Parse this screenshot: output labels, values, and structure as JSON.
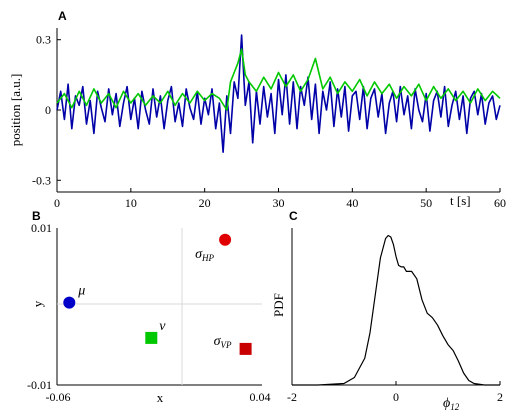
{
  "chart_data": [
    {
      "panel": "A",
      "type": "line",
      "xlabel": "t [s]",
      "ylabel": "position [a.u.]",
      "xlim": [
        0,
        60
      ],
      "ylim": [
        -0.35,
        0.35
      ],
      "xticks": [
        0,
        10,
        20,
        30,
        40,
        50,
        60
      ],
      "yticks": [
        0.3,
        0,
        -0.3
      ],
      "ytick_labels": [
        "0.3",
        "0",
        "-0.3"
      ],
      "series": [
        {
          "color": "#0000a8",
          "x": [
            0,
            0.5,
            1,
            1.5,
            2,
            2.5,
            3,
            3.5,
            4,
            4.5,
            5,
            5.5,
            6,
            6.5,
            7,
            7.5,
            8,
            8.5,
            9,
            9.5,
            10,
            10.5,
            11,
            11.5,
            12,
            12.5,
            13,
            13.5,
            14,
            14.5,
            15,
            15.5,
            16,
            16.5,
            17,
            17.5,
            18,
            18.5,
            19,
            19.5,
            20,
            20.5,
            21,
            21.5,
            22,
            22.5,
            23,
            23.5,
            24,
            24.5,
            25,
            25.5,
            26,
            26.5,
            27,
            27.5,
            28,
            28.5,
            29,
            29.5,
            30,
            30.5,
            31,
            31.5,
            32,
            32.5,
            33,
            33.5,
            34,
            34.5,
            35,
            35.5,
            36,
            36.5,
            37,
            37.5,
            38,
            38.5,
            39,
            39.5,
            40,
            40.5,
            41,
            41.5,
            42,
            42.5,
            43,
            43.5,
            44,
            44.5,
            45,
            45.5,
            46,
            46.5,
            47,
            47.5,
            48,
            48.5,
            49,
            49.5,
            50,
            50.5,
            51,
            51.5,
            52,
            52.5,
            53,
            53.5,
            54,
            54.5,
            55,
            55.5,
            56,
            56.5,
            57,
            57.5,
            58,
            58.5,
            59,
            59.5,
            60
          ],
          "y": [
            0.0,
            0.08,
            -0.04,
            0.11,
            -0.08,
            0.06,
            0.02,
            0.1,
            -0.06,
            0.04,
            -0.1,
            0.08,
            0.01,
            -0.05,
            0.09,
            -0.02,
            0.07,
            -0.07,
            0.03,
            0.1,
            -0.04,
            0.05,
            -0.08,
            0.08,
            0.0,
            -0.06,
            0.09,
            -0.03,
            0.06,
            -0.08,
            0.04,
            0.1,
            -0.05,
            0.03,
            -0.07,
            0.09,
            0.01,
            -0.04,
            0.08,
            -0.06,
            0.05,
            -0.02,
            0.09,
            -0.08,
            0.03,
            -0.18,
            0.06,
            -0.1,
            0.12,
            0.05,
            0.32,
            0.02,
            0.12,
            -0.14,
            0.08,
            -0.06,
            0.1,
            -0.03,
            0.07,
            -0.1,
            0.13,
            -0.02,
            0.15,
            -0.06,
            0.12,
            -0.08,
            0.1,
            0.02,
            0.14,
            -0.04,
            0.11,
            -0.1,
            0.08,
            0.0,
            0.12,
            -0.07,
            0.09,
            -0.03,
            0.1,
            -0.09,
            0.06,
            0.08,
            -0.04,
            0.1,
            -0.08,
            0.05,
            0.09,
            -0.03,
            0.07,
            -0.1,
            0.03,
            0.08,
            -0.05,
            0.1,
            -0.02,
            0.06,
            -0.08,
            0.09,
            0.0,
            -0.05,
            0.07,
            -0.09,
            0.04,
            0.08,
            -0.03,
            0.1,
            -0.07,
            0.02,
            0.08,
            -0.04,
            0.06,
            -0.1,
            0.05,
            0.08,
            -0.02,
            0.07,
            -0.06,
            0.03,
            0.06,
            -0.04,
            0.02
          ]
        },
        {
          "color": "#00c800",
          "x": [
            0,
            1,
            2,
            3,
            4,
            5,
            6,
            7,
            8,
            9,
            10,
            11,
            12,
            13,
            14,
            15,
            16,
            17,
            18,
            19,
            20,
            21,
            22,
            23,
            23.5,
            24,
            24.5,
            25,
            25.5,
            26,
            27,
            28,
            29,
            30,
            31,
            32,
            33,
            34,
            35,
            36,
            37,
            38,
            39,
            40,
            41,
            42,
            43,
            44,
            45,
            46,
            47,
            48,
            49,
            50,
            51,
            52,
            53,
            54,
            55,
            56,
            57,
            58,
            59,
            60
          ],
          "y": [
            0.03,
            0.07,
            0.01,
            0.08,
            0.02,
            0.09,
            0.03,
            0.07,
            0.01,
            0.08,
            0.03,
            0.07,
            0.02,
            0.06,
            0.03,
            0.08,
            0.02,
            0.07,
            0.03,
            0.08,
            0.04,
            0.07,
            0.05,
            0.0,
            0.12,
            0.16,
            0.2,
            0.26,
            0.15,
            0.12,
            0.08,
            0.14,
            0.09,
            0.16,
            0.1,
            0.15,
            0.08,
            0.13,
            0.22,
            0.09,
            0.14,
            0.07,
            0.12,
            0.08,
            0.13,
            0.06,
            0.12,
            0.07,
            0.11,
            0.05,
            0.1,
            0.06,
            0.11,
            0.04,
            0.1,
            0.05,
            0.09,
            0.04,
            0.08,
            0.03,
            0.09,
            0.04,
            0.08,
            0.05
          ]
        }
      ]
    },
    {
      "panel": "B",
      "type": "scatter",
      "xlabel": "x",
      "ylabel": "y",
      "xlim": [
        -0.06,
        0.04
      ],
      "ylim": [
        -0.01,
        0.01
      ],
      "xtick_labels": [
        "-0.06",
        "0.04"
      ],
      "ytick_labels": [
        "0.01",
        "-0.01"
      ],
      "points": [
        {
          "label": "μ",
          "sub": "",
          "x": -0.054,
          "y": 0.0005,
          "color": "#0000c8",
          "shape": "circle"
        },
        {
          "label": "σ",
          "sub": "HP",
          "x": 0.022,
          "y": 0.0085,
          "color": "#e00000",
          "shape": "circle"
        },
        {
          "label": "ν",
          "sub": "",
          "x": -0.014,
          "y": -0.004,
          "color": "#00c800",
          "shape": "square"
        },
        {
          "label": "σ",
          "sub": "VP",
          "x": 0.032,
          "y": -0.0054,
          "color": "#c80000",
          "shape": "square"
        }
      ]
    },
    {
      "panel": "C",
      "type": "line",
      "xlabel": "ϕ",
      "xlabel_sub": "12",
      "ylabel": "PDF",
      "xlim": [
        -2,
        2
      ],
      "ylim": [
        0,
        1.05
      ],
      "xtick_labels": [
        "-2",
        "0",
        "2"
      ],
      "series": [
        {
          "color": "#000000",
          "x": [
            -2,
            -1.5,
            -1,
            -0.8,
            -0.6,
            -0.5,
            -0.4,
            -0.3,
            -0.2,
            -0.15,
            -0.1,
            -0.05,
            0,
            0.05,
            0.1,
            0.15,
            0.2,
            0.3,
            0.4,
            0.5,
            0.6,
            0.7,
            0.8,
            0.9,
            1,
            1.1,
            1.2,
            1.3,
            1.4,
            1.5,
            1.7,
            2
          ],
          "y": [
            0,
            0,
            0.01,
            0.05,
            0.18,
            0.35,
            0.6,
            0.85,
            0.98,
            1.0,
            0.99,
            0.94,
            0.86,
            0.8,
            0.79,
            0.79,
            0.76,
            0.76,
            0.71,
            0.57,
            0.48,
            0.45,
            0.4,
            0.33,
            0.27,
            0.23,
            0.16,
            0.08,
            0.03,
            0.01,
            0,
            0
          ]
        }
      ]
    }
  ],
  "panel_labels": [
    "A",
    "B",
    "C"
  ]
}
